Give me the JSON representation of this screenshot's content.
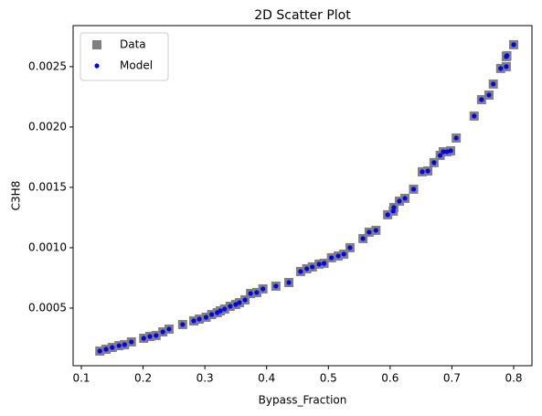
{
  "chart_data": {
    "type": "scatter",
    "title": "2D Scatter Plot",
    "x_label": "Bypass_Fraction",
    "y_label": "C3H8",
    "x": [
      0.13,
      0.14,
      0.15,
      0.161,
      0.17,
      0.181,
      0.201,
      0.211,
      0.221,
      0.232,
      0.242,
      0.264,
      0.282,
      0.291,
      0.302,
      0.311,
      0.32,
      0.325,
      0.332,
      0.341,
      0.35,
      0.356,
      0.365,
      0.374,
      0.384,
      0.394,
      0.415,
      0.436,
      0.455,
      0.465,
      0.474,
      0.485,
      0.493,
      0.505,
      0.516,
      0.525,
      0.535,
      0.556,
      0.566,
      0.577,
      0.596,
      0.605,
      0.606,
      0.615,
      0.624,
      0.638,
      0.652,
      0.661,
      0.671,
      0.681,
      0.686,
      0.692,
      0.698,
      0.707,
      0.736,
      0.748,
      0.76,
      0.767,
      0.779,
      0.788,
      0.788,
      0.789,
      0.8
    ],
    "series": [
      {
        "name": "Data",
        "color": "#808080",
        "marker": "square",
        "values": [
          0.000144,
          0.000159,
          0.000174,
          0.000189,
          0.000197,
          0.00022,
          0.00025,
          0.000265,
          0.000273,
          0.000303,
          0.000326,
          0.000364,
          0.000394,
          0.000409,
          0.000424,
          0.000447,
          0.000462,
          0.000477,
          0.000492,
          0.000515,
          0.00053,
          0.000545,
          0.000568,
          0.000621,
          0.000629,
          0.000659,
          0.000682,
          0.000712,
          0.000803,
          0.000826,
          0.000841,
          0.000864,
          0.000871,
          0.000917,
          0.000932,
          0.000947,
          0.001,
          0.001076,
          0.001129,
          0.001144,
          0.001273,
          0.001303,
          0.001333,
          0.001386,
          0.001409,
          0.001485,
          0.001629,
          0.001636,
          0.001705,
          0.001765,
          0.001795,
          0.001795,
          0.001803,
          0.001909,
          0.002091,
          0.002227,
          0.002265,
          0.002356,
          0.002485,
          0.0025,
          0.002583,
          0.002591,
          0.002682
        ]
      },
      {
        "name": "Model",
        "color": "#0000ff",
        "marker": "circle",
        "values": [
          0.000144,
          0.000159,
          0.000174,
          0.000189,
          0.000197,
          0.00022,
          0.00025,
          0.000265,
          0.000273,
          0.000303,
          0.000326,
          0.000364,
          0.000394,
          0.000409,
          0.000424,
          0.000447,
          0.000462,
          0.000477,
          0.000492,
          0.000515,
          0.00053,
          0.000545,
          0.000568,
          0.000621,
          0.000629,
          0.000659,
          0.000682,
          0.000712,
          0.000803,
          0.000826,
          0.000841,
          0.000864,
          0.000871,
          0.000917,
          0.000932,
          0.000947,
          0.001,
          0.001076,
          0.001129,
          0.001144,
          0.001273,
          0.001303,
          0.001333,
          0.001386,
          0.001409,
          0.001485,
          0.001629,
          0.001636,
          0.001705,
          0.001765,
          0.001795,
          0.001795,
          0.001803,
          0.001909,
          0.002091,
          0.002227,
          0.002265,
          0.002356,
          0.002485,
          0.0025,
          0.002583,
          0.002591,
          0.002682
        ]
      }
    ],
    "xlim": [
      0.0867,
      0.8296
    ],
    "xticks": [
      0.1,
      0.2,
      0.3,
      0.4,
      0.5,
      0.6,
      0.7,
      0.8
    ],
    "ylim": [
      2.27e-05,
      0.00284
    ],
    "yticks": [
      0.0005,
      {
        "value": 0.001,
        "label": "0.0010"
      },
      0.0015,
      {
        "value": 0.002,
        "label": "0.0020"
      },
      0.0025
    ],
    "grid": false,
    "legend": "upper left"
  }
}
